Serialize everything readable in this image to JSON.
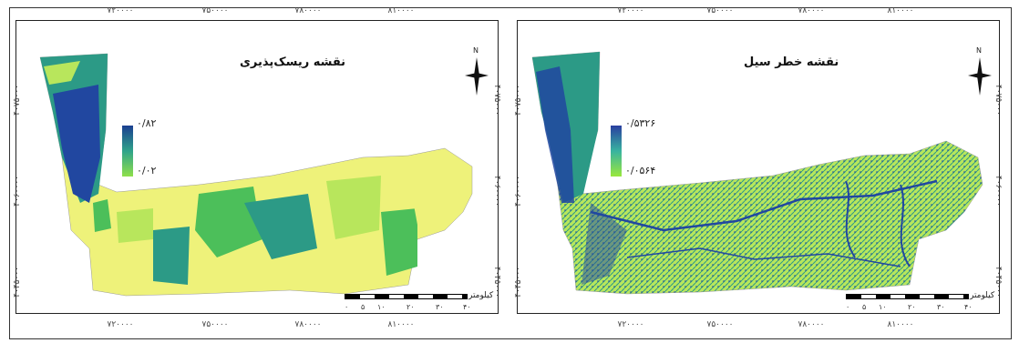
{
  "panels": [
    {
      "title": "نقشه ریسک‌پذیری",
      "legend": {
        "max": "۰/۸۲",
        "min": "۰/۰۲",
        "high_color": "#1b3f91",
        "mid_color": "#2fa38a",
        "low_color": "#8fe04a"
      },
      "x_ticks": [
        "۷۲۰۰۰۰",
        "۷۵۰۰۰۰",
        "۷۸۰۰۰۰",
        "۸۱۰۰۰۰"
      ],
      "y_ticks": [
        "۴۰۷۵۰۰۰",
        "۴۰۶۰۰۰۰",
        "۴۰۴۵۰۰۰"
      ],
      "north": "N",
      "scale_unit": "کیلومتر",
      "scale_ticks": [
        "۰",
        "۵",
        "۱۰",
        "۲۰",
        "۳۰",
        "۴۰"
      ]
    },
    {
      "title": "نقشه خطر سیل",
      "legend": {
        "max": "۰/۵۳۲۶",
        "min": "۰/۰۵۶۴",
        "high_color": "#2a3fa0",
        "mid_color": "#38b3a0",
        "low_color": "#9ae83c"
      },
      "x_ticks": [
        "۷۲۰۰۰۰",
        "۷۵۰۰۰۰",
        "۷۸۰۰۰۰",
        "۸۱۰۰۰۰"
      ],
      "y_ticks": [
        "۴۰۷۵۰۰۰",
        "۴۰۶۰۰۰۰",
        "۴۰۴۵۰۰۰"
      ],
      "north": "N",
      "scale_unit": "کیلومتر",
      "scale_ticks": [
        "۰",
        "۵",
        "۱۰",
        "۲۰",
        "۳۰",
        "۴۰"
      ]
    }
  ],
  "colors": {
    "yellow": "#eef27a",
    "light_green": "#b8e65c",
    "green": "#4cbf5a",
    "teal": "#2c9a86",
    "blue": "#2147a0"
  }
}
